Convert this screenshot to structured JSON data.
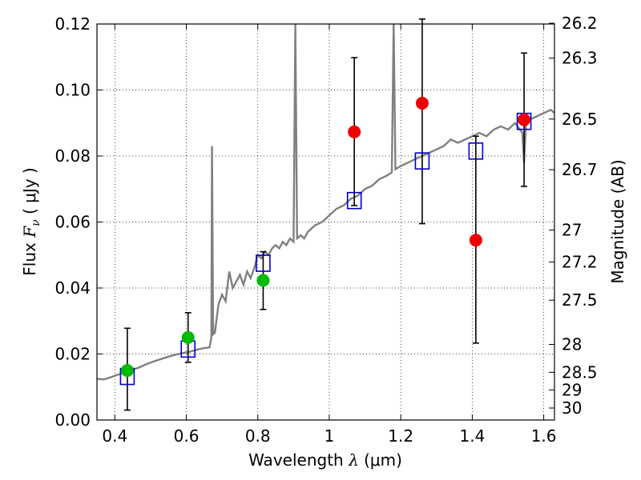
{
  "chart_data": {
    "type": "scatter",
    "xlabel": {
      "prefix": "Wavelength  ",
      "symbol": "λ",
      "unit": " (μm)"
    },
    "ylabel": {
      "prefix": "Flux  ",
      "symbol": "F",
      "subscript": "ν",
      "unit": "  ( μJy )"
    },
    "y2label": "Magnitude (AB)",
    "xlim": [
      0.35,
      1.63
    ],
    "ylim": [
      0.0,
      0.12
    ],
    "x_ticks": [
      0.4,
      0.6,
      0.8,
      1.0,
      1.2,
      1.4,
      1.6
    ],
    "x_tick_labels": [
      "0.4",
      "0.6",
      "0.8",
      "1",
      "1.2",
      "1.4",
      "1.6"
    ],
    "y_ticks": [
      0.0,
      0.02,
      0.04,
      0.06,
      0.08,
      0.1,
      0.12
    ],
    "y_tick_labels": [
      "0.00",
      "0.02",
      "0.04",
      "0.06",
      "0.08",
      "0.10",
      "0.12"
    ],
    "mag_ticks": [
      {
        "label": "26.2",
        "value": 26.2
      },
      {
        "label": "26.3",
        "value": 26.3
      },
      {
        "label": "26.5",
        "value": 26.5
      },
      {
        "label": "26.7",
        "value": 26.7
      },
      {
        "label": "27",
        "value": 27.0
      },
      {
        "label": "27.2",
        "value": 27.2
      },
      {
        "label": "27.5",
        "value": 27.5
      },
      {
        "label": "28",
        "value": 28.0
      },
      {
        "label": "28.5",
        "value": 28.5
      },
      {
        "label": "29",
        "value": 29.0
      },
      {
        "label": "30",
        "value": 30.0
      }
    ],
    "grid": true,
    "colors": {
      "template": "#808080",
      "model_box": "#0000cc",
      "green": "#00bb00",
      "red": "#ee0000",
      "errorbar": "#000000"
    },
    "template_spectrum": [
      [
        0.35,
        0.0125
      ],
      [
        0.37,
        0.0123
      ],
      [
        0.39,
        0.013
      ],
      [
        0.41,
        0.0138
      ],
      [
        0.43,
        0.0143
      ],
      [
        0.45,
        0.0152
      ],
      [
        0.47,
        0.016
      ],
      [
        0.49,
        0.017
      ],
      [
        0.51,
        0.0178
      ],
      [
        0.53,
        0.0185
      ],
      [
        0.55,
        0.0192
      ],
      [
        0.57,
        0.0198
      ],
      [
        0.59,
        0.0203
      ],
      [
        0.61,
        0.0207
      ],
      [
        0.63,
        0.0213
      ],
      [
        0.65,
        0.0218
      ],
      [
        0.665,
        0.022
      ],
      [
        0.67,
        0.025
      ],
      [
        0.672,
        0.083
      ],
      [
        0.675,
        0.026
      ],
      [
        0.68,
        0.0265
      ],
      [
        0.69,
        0.035
      ],
      [
        0.7,
        0.038
      ],
      [
        0.71,
        0.036
      ],
      [
        0.72,
        0.045
      ],
      [
        0.73,
        0.04
      ],
      [
        0.74,
        0.042
      ],
      [
        0.75,
        0.044
      ],
      [
        0.76,
        0.041
      ],
      [
        0.77,
        0.045
      ],
      [
        0.78,
        0.043
      ],
      [
        0.79,
        0.046
      ],
      [
        0.8,
        0.05
      ],
      [
        0.81,
        0.049
      ],
      [
        0.82,
        0.051
      ],
      [
        0.83,
        0.05
      ],
      [
        0.84,
        0.052
      ],
      [
        0.85,
        0.053
      ],
      [
        0.86,
        0.052
      ],
      [
        0.87,
        0.054
      ],
      [
        0.88,
        0.053
      ],
      [
        0.89,
        0.055
      ],
      [
        0.9,
        0.054
      ],
      [
        0.905,
        0.12
      ],
      [
        0.91,
        0.055
      ],
      [
        0.92,
        0.056
      ],
      [
        0.93,
        0.055
      ],
      [
        0.94,
        0.057
      ],
      [
        0.96,
        0.059
      ],
      [
        0.98,
        0.06
      ],
      [
        1.0,
        0.062
      ],
      [
        1.02,
        0.064
      ],
      [
        1.04,
        0.065
      ],
      [
        1.06,
        0.067
      ],
      [
        1.08,
        0.068
      ],
      [
        1.1,
        0.07
      ],
      [
        1.12,
        0.071
      ],
      [
        1.14,
        0.073
      ],
      [
        1.16,
        0.074
      ],
      [
        1.175,
        0.075
      ],
      [
        1.18,
        0.12
      ],
      [
        1.185,
        0.076
      ],
      [
        1.2,
        0.077
      ],
      [
        1.22,
        0.078
      ],
      [
        1.24,
        0.079
      ],
      [
        1.26,
        0.08
      ],
      [
        1.28,
        0.081
      ],
      [
        1.3,
        0.082
      ],
      [
        1.32,
        0.083
      ],
      [
        1.34,
        0.085
      ],
      [
        1.36,
        0.084
      ],
      [
        1.38,
        0.085
      ],
      [
        1.4,
        0.086
      ],
      [
        1.42,
        0.087
      ],
      [
        1.44,
        0.086
      ],
      [
        1.46,
        0.088
      ],
      [
        1.48,
        0.089
      ],
      [
        1.5,
        0.088
      ],
      [
        1.52,
        0.09
      ],
      [
        1.54,
        0.087
      ],
      [
        1.545,
        0.078
      ],
      [
        1.55,
        0.089
      ],
      [
        1.56,
        0.091
      ],
      [
        1.58,
        0.092
      ],
      [
        1.6,
        0.093
      ],
      [
        1.62,
        0.094
      ],
      [
        1.63,
        0.093
      ]
    ],
    "series": [
      {
        "name": "model_boxes",
        "marker": "open-square",
        "x": [
          0.435,
          0.605,
          0.815,
          1.07,
          1.26,
          1.41,
          1.545
        ],
        "y": [
          0.0132,
          0.0215,
          0.0475,
          0.0665,
          0.0785,
          0.0815,
          0.0905
        ]
      },
      {
        "name": "green_points",
        "marker": "filled-circle",
        "x": [
          0.435,
          0.605,
          0.815
        ],
        "y": [
          0.015,
          0.025,
          0.0423
        ],
        "yerr_low": [
          0.003,
          0.0175,
          0.0335
        ],
        "yerr_high": [
          0.0278,
          0.0325,
          0.051
        ]
      },
      {
        "name": "red_points",
        "marker": "filled-circle",
        "x": [
          1.07,
          1.26,
          1.41,
          1.545
        ],
        "y": [
          0.0873,
          0.096,
          0.0545,
          0.091
        ],
        "yerr_low": [
          0.065,
          0.0595,
          0.0233,
          0.0708
        ],
        "yerr_high": [
          0.1098,
          0.1215,
          0.086,
          0.1112
        ]
      }
    ]
  }
}
